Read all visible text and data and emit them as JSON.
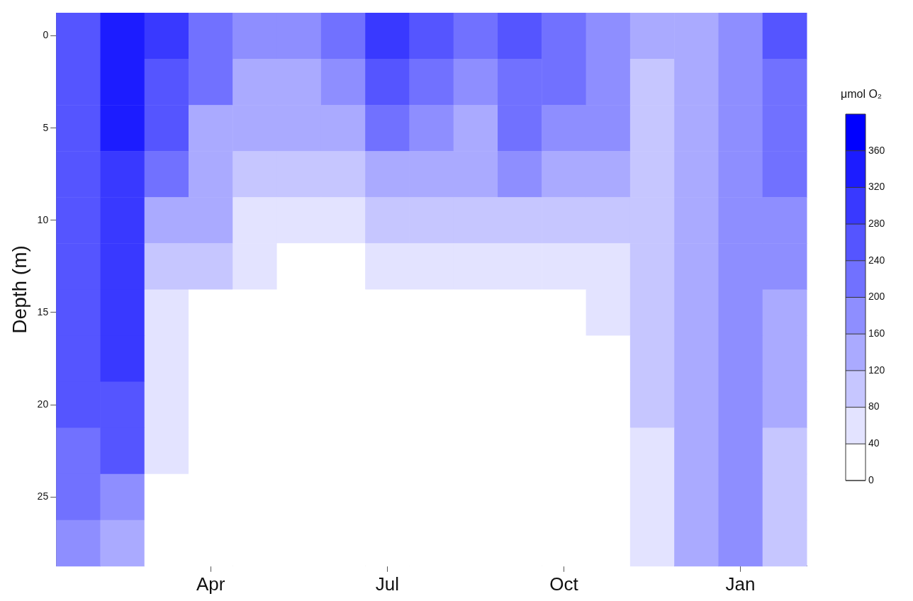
{
  "chart_data": {
    "type": "heatmap",
    "ylabel": "Depth (m)",
    "clabel": "μmol O₂",
    "categories": [
      null,
      null,
      null,
      "Apr",
      null,
      null,
      null,
      "Jul",
      null,
      null,
      null,
      "Oct",
      null,
      null,
      null,
      "Jan",
      null
    ],
    "y_categories": [
      "0",
      null,
      "5",
      null,
      "10",
      null,
      "15",
      null,
      "20",
      null,
      "25",
      null
    ],
    "cells": [
      [
        260,
        340,
        300,
        220,
        180,
        180,
        220,
        300,
        260,
        220,
        260,
        220,
        180,
        140,
        140,
        180,
        260
      ],
      [
        260,
        340,
        260,
        220,
        140,
        140,
        180,
        260,
        220,
        180,
        220,
        220,
        180,
        100,
        140,
        180,
        220
      ],
      [
        260,
        340,
        260,
        140,
        140,
        140,
        140,
        220,
        180,
        140,
        220,
        180,
        180,
        100,
        140,
        180,
        220
      ],
      [
        260,
        300,
        220,
        140,
        100,
        100,
        100,
        140,
        140,
        140,
        180,
        140,
        140,
        100,
        140,
        180,
        220
      ],
      [
        260,
        300,
        140,
        140,
        60,
        60,
        60,
        100,
        100,
        100,
        100,
        100,
        100,
        100,
        140,
        180,
        180
      ],
      [
        260,
        300,
        100,
        100,
        60,
        20,
        20,
        60,
        60,
        60,
        60,
        60,
        60,
        100,
        140,
        180,
        180
      ],
      [
        260,
        300,
        60,
        20,
        20,
        20,
        20,
        20,
        20,
        20,
        20,
        20,
        60,
        100,
        140,
        180,
        140
      ],
      [
        260,
        300,
        60,
        20,
        20,
        20,
        20,
        20,
        20,
        20,
        20,
        20,
        20,
        100,
        140,
        180,
        140
      ],
      [
        260,
        260,
        60,
        20,
        20,
        20,
        20,
        20,
        20,
        20,
        20,
        20,
        20,
        100,
        140,
        180,
        140
      ],
      [
        220,
        260,
        60,
        20,
        20,
        20,
        20,
        20,
        20,
        20,
        20,
        20,
        20,
        60,
        140,
        180,
        100
      ],
      [
        220,
        180,
        20,
        20,
        20,
        20,
        20,
        20,
        20,
        20,
        20,
        20,
        20,
        60,
        140,
        180,
        100
      ],
      [
        180,
        140,
        20,
        20,
        20,
        20,
        20,
        20,
        20,
        20,
        20,
        20,
        20,
        60,
        140,
        180,
        100
      ]
    ],
    "color": "#0000ff",
    "clim": [
      0,
      400
    ],
    "cticks": [
      0,
      40,
      80,
      120,
      160,
      200,
      240,
      280,
      320,
      360
    ]
  }
}
